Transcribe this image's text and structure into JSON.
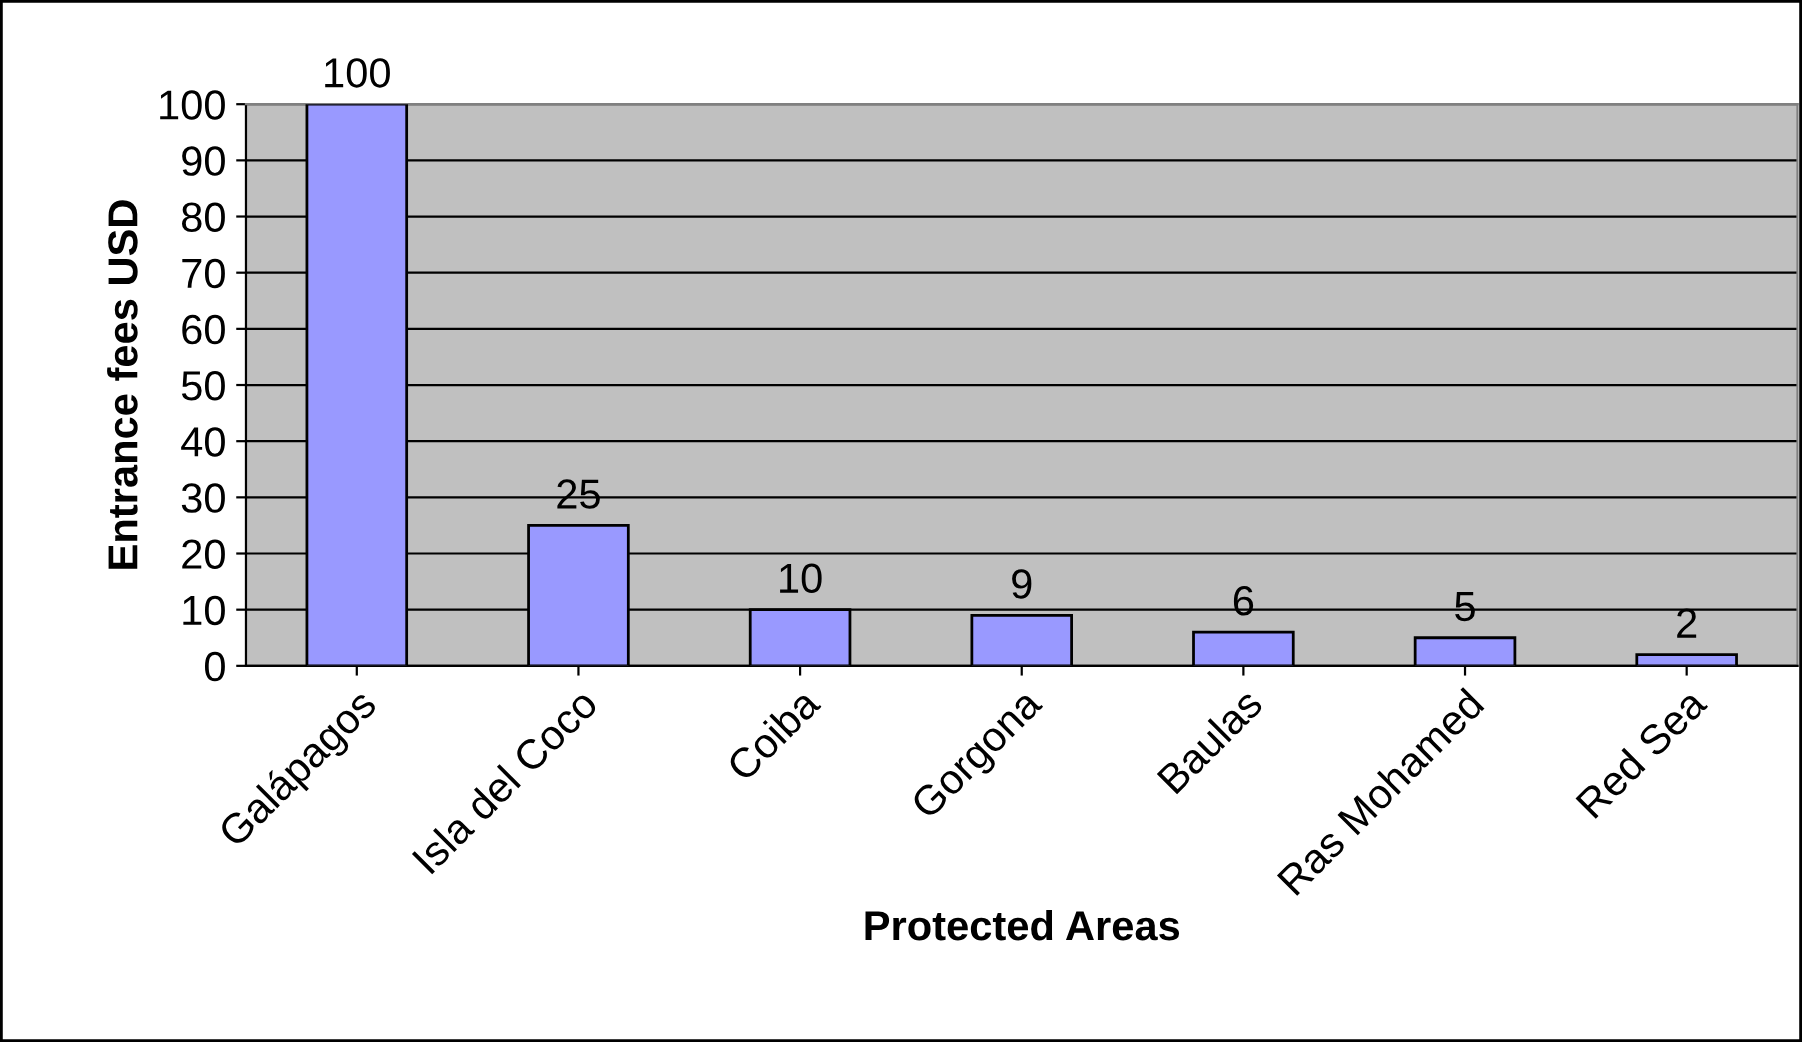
{
  "chart_data": {
    "type": "bar",
    "xlabel": "Protected Areas",
    "ylabel": "Entrance fees USD",
    "categories": [
      "Galápagos",
      "Isla del Coco",
      "Coiba",
      "Gorgona",
      "Baulas",
      "Ras Mohamed",
      "Red Sea"
    ],
    "values": [
      100,
      25,
      10,
      9,
      6,
      5,
      2
    ],
    "color": "#9999ff",
    "ylim": [
      0,
      100
    ],
    "yticks": [
      0,
      10,
      20,
      30,
      40,
      50,
      60,
      70,
      80,
      90,
      100
    ],
    "grid": "y",
    "data_labels": true
  }
}
